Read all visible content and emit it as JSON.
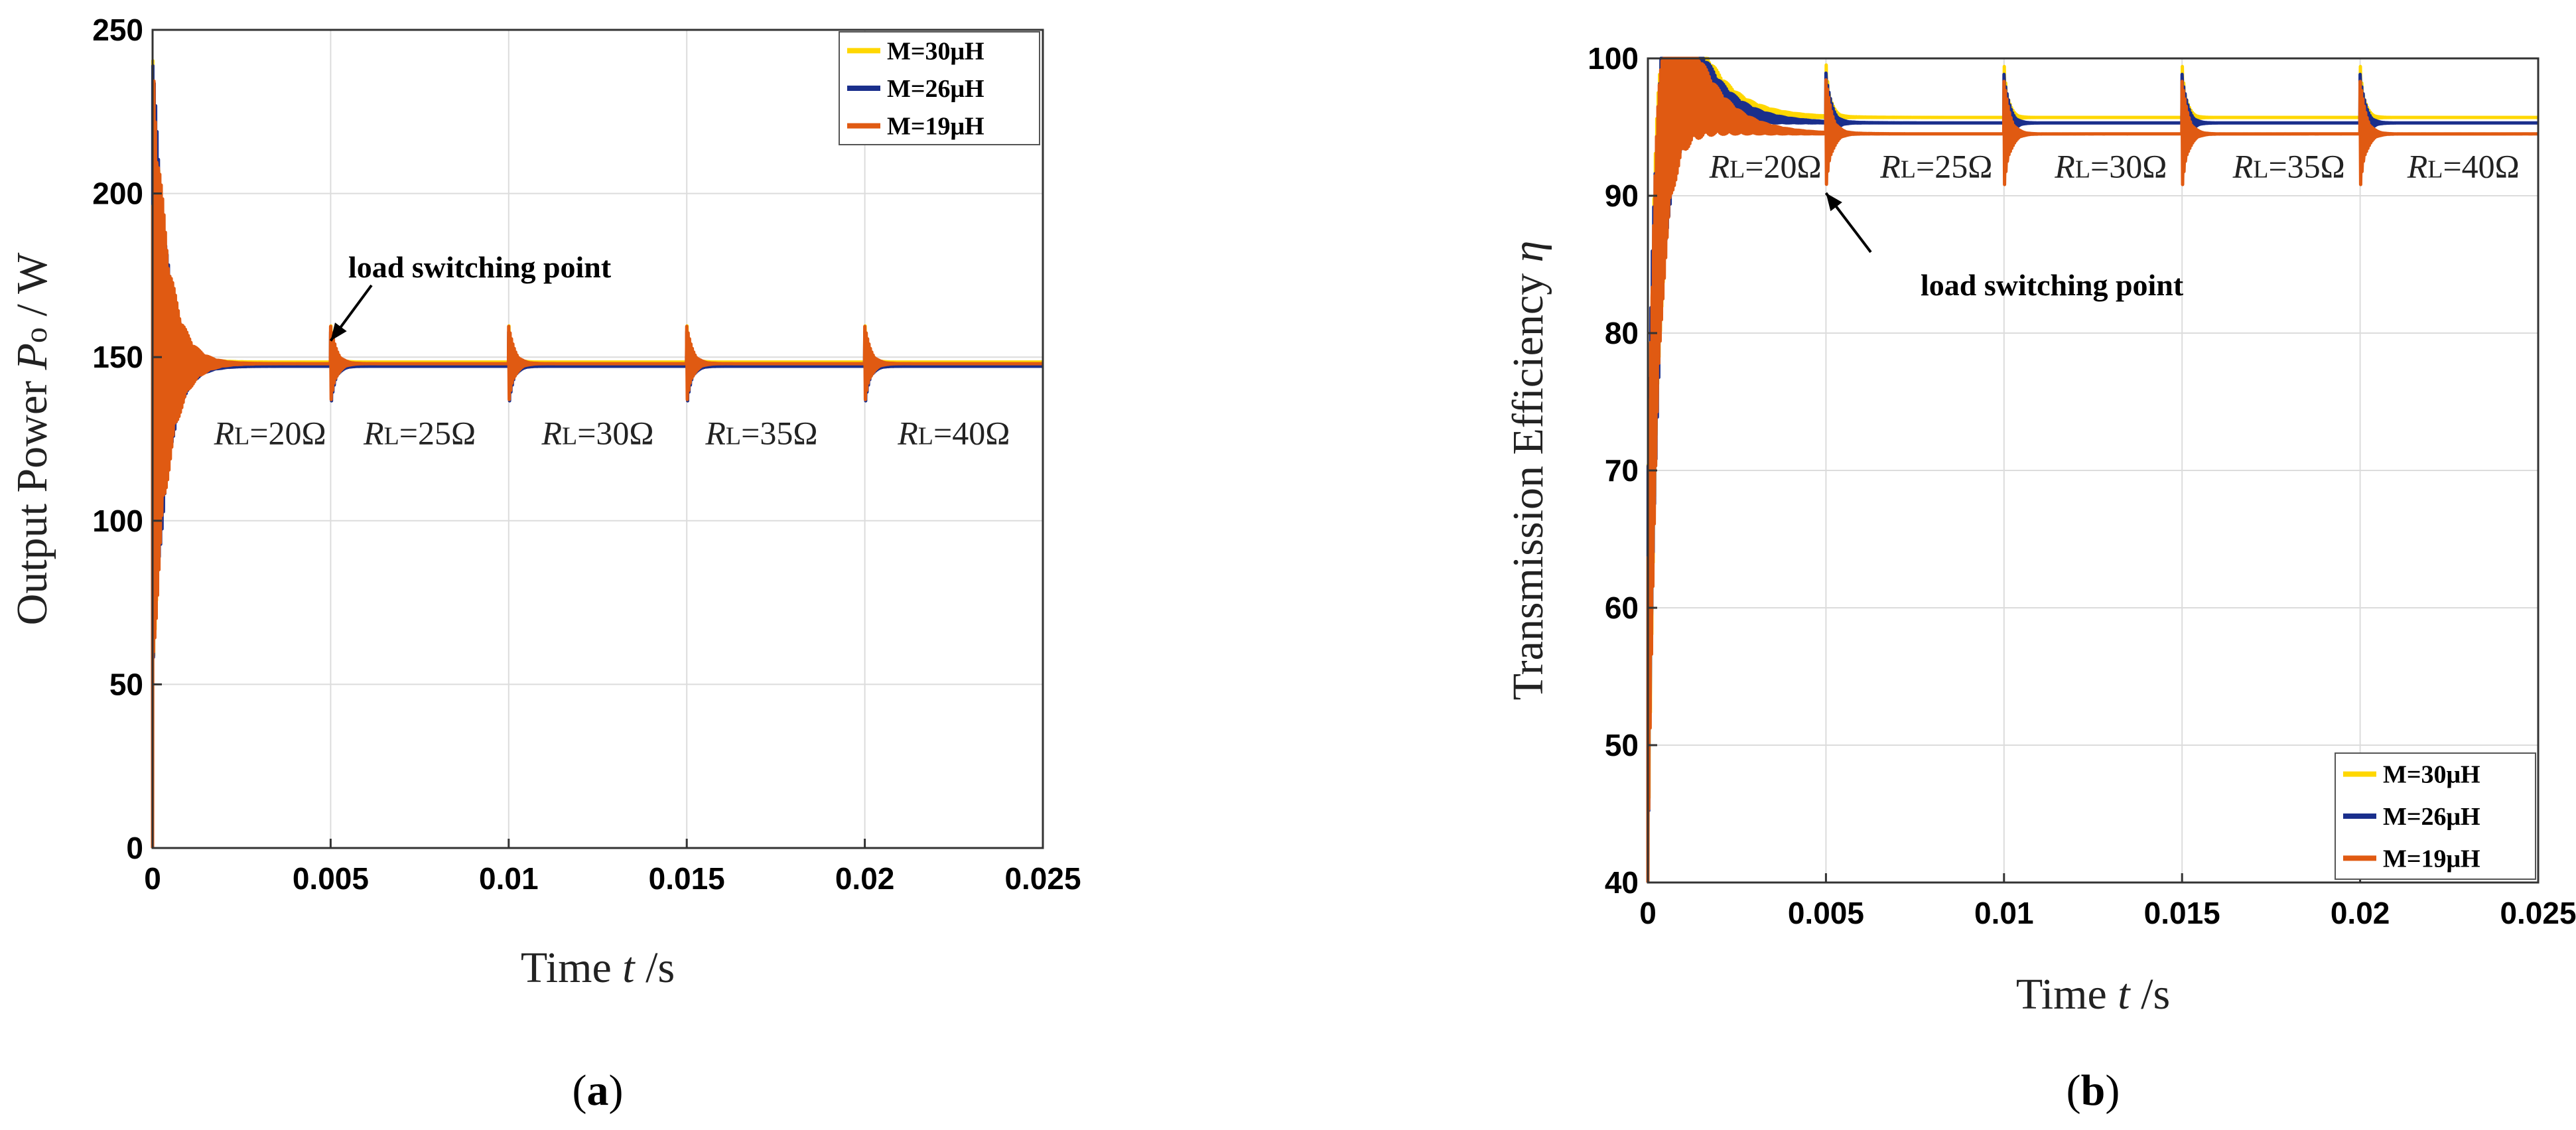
{
  "chart_data": [
    {
      "type": "line",
      "panel_label": "(a)",
      "panel_letter": "a",
      "xlabel_prefix": "Time ",
      "xlabel_var": "t",
      "xlabel_suffix": " /s",
      "ylabel_prefix": "Output Power ",
      "ylabel_var": "P",
      "ylabel_sub": "o",
      "ylabel_suffix": " / W",
      "xlim": [
        0,
        0.025
      ],
      "ylim": [
        0,
        250
      ],
      "xticks": [
        0,
        0.005,
        0.01,
        0.015,
        0.02,
        0.025
      ],
      "xtick_labels": [
        "0",
        "0.005",
        "0.01",
        "0.015",
        "0.02",
        "0.025"
      ],
      "yticks": [
        0,
        50,
        100,
        150,
        200,
        250
      ],
      "ytick_labels": [
        "0",
        "50",
        "100",
        "150",
        "200",
        "250"
      ],
      "grid": true,
      "legend_position": "top-right",
      "series": [
        {
          "name": "M=30μH",
          "color": "#ffd700",
          "steady": 148.5
        },
        {
          "name": "M=26μH",
          "color": "#1a2f8c",
          "steady": 147.2
        },
        {
          "name": "M=19μH",
          "color": "#e05a12",
          "steady": 148.0
        }
      ],
      "switch_times": [
        0.005,
        0.01,
        0.015,
        0.02
      ],
      "annotation_text": "load switching point",
      "annotation_target": [
        0.005,
        155
      ],
      "rl_labels": [
        {
          "var": "R",
          "sub": "L",
          "val": "=20Ω",
          "x": 0.0033
        },
        {
          "var": "R",
          "sub": "L",
          "val": "=25Ω",
          "x": 0.0075
        },
        {
          "var": "R",
          "sub": "L",
          "val": "=30Ω",
          "x": 0.0125
        },
        {
          "var": "R",
          "sub": "L",
          "val": "=35Ω",
          "x": 0.0171
        },
        {
          "var": "R",
          "sub": "L",
          "val": "=40Ω",
          "x": 0.0225
        }
      ],
      "rl_label_y": 127
    },
    {
      "type": "line",
      "panel_label": "(b)",
      "panel_letter": "b",
      "xlabel_prefix": "Time ",
      "xlabel_var": "t",
      "xlabel_suffix": " /s",
      "ylabel_prefix": "Transmission Efficiency ",
      "ylabel_var": "η",
      "xlim": [
        0,
        0.025
      ],
      "ylim": [
        40,
        100
      ],
      "xticks": [
        0,
        0.005,
        0.01,
        0.015,
        0.02,
        0.025
      ],
      "xtick_labels": [
        "0",
        "0.005",
        "0.01",
        "0.015",
        "0.02",
        "0.025"
      ],
      "yticks": [
        40,
        50,
        60,
        70,
        80,
        90,
        100
      ],
      "ytick_labels": [
        "40",
        "50",
        "60",
        "70",
        "80",
        "90",
        "100"
      ],
      "grid": true,
      "legend_position": "bottom-right",
      "series": [
        {
          "name": "M=30μH",
          "color": "#ffd700",
          "steady": 95.7
        },
        {
          "name": "M=26μH",
          "color": "#1a2f8c",
          "steady": 95.3
        },
        {
          "name": "M=19μH",
          "color": "#e05a12",
          "steady": 94.5
        }
      ],
      "switch_times": [
        0.005,
        0.01,
        0.015,
        0.02
      ],
      "annotation_text": "load switching point",
      "annotation_target": [
        0.005,
        90.2
      ],
      "rl_labels": [
        {
          "var": "R",
          "sub": "L",
          "val": "=20Ω",
          "x": 0.0033
        },
        {
          "var": "R",
          "sub": "L",
          "val": "=25Ω",
          "x": 0.0081
        },
        {
          "var": "R",
          "sub": "L",
          "val": "=30Ω",
          "x": 0.013
        },
        {
          "var": "R",
          "sub": "L",
          "val": "=35Ω",
          "x": 0.018
        },
        {
          "var": "R",
          "sub": "L",
          "val": "=40Ω",
          "x": 0.0229
        }
      ],
      "rl_label_y": 92.2
    }
  ]
}
